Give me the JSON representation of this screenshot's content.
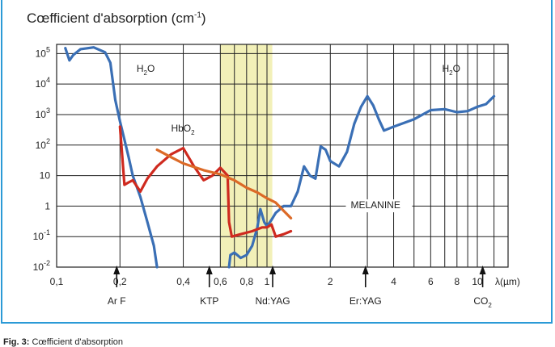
{
  "chart_data": {
    "type": "line",
    "title": "Cœfficient d'absorption (cm",
    "title_sup": "-1",
    "x_scale": "log",
    "y_scale": "log",
    "xlabel": "λ(µm)",
    "xlim": [
      0.1,
      14
    ],
    "ylim": [
      0.01,
      200000
    ],
    "x_ticks": [
      {
        "v": 0.1,
        "label": "0,1"
      },
      {
        "v": 0.2,
        "label": "0,2"
      },
      {
        "v": 0.4,
        "label": "0,4"
      },
      {
        "v": 0.6,
        "label": "0,6"
      },
      {
        "v": 0.8,
        "label": "0,8"
      },
      {
        "v": 1,
        "label": "1"
      },
      {
        "v": 2,
        "label": "2"
      },
      {
        "v": 4,
        "label": "4"
      },
      {
        "v": 6,
        "label": "6"
      },
      {
        "v": 8,
        "label": "8"
      },
      {
        "v": 10,
        "label": "10"
      }
    ],
    "x_grid": [
      0.1,
      0.2,
      0.4,
      0.6,
      0.7,
      0.8,
      0.9,
      1,
      2,
      3,
      4,
      5,
      6,
      7,
      8,
      9,
      10,
      12
    ],
    "y_ticks": [
      {
        "v": 100000,
        "base": "10",
        "exp": "5"
      },
      {
        "v": 10000,
        "base": "10",
        "exp": "4"
      },
      {
        "v": 1000,
        "base": "10",
        "exp": "3"
      },
      {
        "v": 100,
        "base": "10",
        "exp": "2"
      },
      {
        "v": 10,
        "base": "10",
        "exp": ""
      },
      {
        "v": 1,
        "base": "1",
        "exp": ""
      },
      {
        "v": 0.1,
        "base": "10",
        "exp": "-1"
      },
      {
        "v": 0.01,
        "base": "10",
        "exp": "-2"
      }
    ],
    "highlight_band": {
      "from": 0.6,
      "to": 1.06,
      "color": "#f2f0b8"
    },
    "series": [
      {
        "color": "#3a6fb5",
        "points": [
          [
            0.11,
            150000
          ],
          [
            0.115,
            60000
          ],
          [
            0.12,
            90000
          ],
          [
            0.13,
            140000
          ],
          [
            0.15,
            160000
          ],
          [
            0.17,
            110000
          ],
          [
            0.18,
            50000
          ],
          [
            0.19,
            3000
          ],
          [
            0.2,
            600
          ],
          [
            0.21,
            150
          ],
          [
            0.22,
            40
          ],
          [
            0.23,
            10
          ],
          [
            0.25,
            2
          ],
          [
            0.27,
            0.3
          ],
          [
            0.29,
            0.05
          ],
          [
            0.3,
            0.01
          ]
        ]
      },
      {
        "color": "#3a6fb5",
        "points": [
          [
            0.66,
            0.01
          ],
          [
            0.67,
            0.025
          ],
          [
            0.7,
            0.03
          ],
          [
            0.75,
            0.02
          ],
          [
            0.8,
            0.025
          ],
          [
            0.85,
            0.05
          ],
          [
            0.9,
            0.2
          ],
          [
            0.93,
            0.8
          ],
          [
            0.97,
            0.3
          ],
          [
            1.0,
            0.22
          ],
          [
            1.05,
            0.35
          ],
          [
            1.1,
            0.6
          ],
          [
            1.2,
            1
          ],
          [
            1.3,
            1
          ],
          [
            1.4,
            3
          ],
          [
            1.5,
            20
          ],
          [
            1.6,
            10
          ],
          [
            1.7,
            8
          ],
          [
            1.8,
            90
          ],
          [
            1.9,
            70
          ],
          [
            2.0,
            30
          ],
          [
            2.2,
            20
          ],
          [
            2.4,
            60
          ],
          [
            2.6,
            500
          ],
          [
            2.8,
            1800
          ],
          [
            3.0,
            4000
          ],
          [
            3.2,
            2000
          ],
          [
            3.4,
            700
          ],
          [
            3.6,
            300
          ],
          [
            4.0,
            400
          ],
          [
            5.0,
            700
          ],
          [
            6.0,
            1400
          ],
          [
            7.0,
            1500
          ],
          [
            8.0,
            1200
          ],
          [
            9.0,
            1300
          ],
          [
            10.0,
            1800
          ],
          [
            11.0,
            2200
          ],
          [
            12.0,
            4000
          ]
        ]
      },
      {
        "color": "#cf2a1f",
        "points": [
          [
            0.2,
            400
          ],
          [
            0.21,
            5
          ],
          [
            0.22,
            6
          ],
          [
            0.23,
            7
          ],
          [
            0.25,
            3
          ],
          [
            0.27,
            8
          ],
          [
            0.3,
            20
          ],
          [
            0.35,
            50
          ],
          [
            0.4,
            80
          ],
          [
            0.45,
            20
          ],
          [
            0.5,
            7
          ],
          [
            0.55,
            10
          ],
          [
            0.6,
            18
          ],
          [
            0.65,
            10
          ],
          [
            0.66,
            0.3
          ],
          [
            0.68,
            0.1
          ],
          [
            0.75,
            0.12
          ],
          [
            0.85,
            0.15
          ],
          [
            0.95,
            0.2
          ],
          [
            1.0,
            0.2
          ],
          [
            1.05,
            0.25
          ],
          [
            1.1,
            0.1
          ],
          [
            1.2,
            0.12
          ],
          [
            1.3,
            0.15
          ]
        ]
      },
      {
        "color": "#dc6a27",
        "points": [
          [
            0.3,
            70
          ],
          [
            0.35,
            40
          ],
          [
            0.4,
            25
          ],
          [
            0.5,
            15
          ],
          [
            0.6,
            11
          ],
          [
            0.7,
            7
          ],
          [
            0.8,
            4
          ],
          [
            0.9,
            2.8
          ],
          [
            1.0,
            1.8
          ],
          [
            1.1,
            1.3
          ],
          [
            1.2,
            0.7
          ],
          [
            1.3,
            0.4
          ]
        ]
      }
    ],
    "annotations": [
      {
        "text": "H",
        "sub": "2",
        "tail": "O",
        "x": 0.24,
        "y": 25000
      },
      {
        "text": "H",
        "sub": "2",
        "tail": "O",
        "x": 6.8,
        "y": 25000
      },
      {
        "text": "HbO",
        "sub": "2",
        "tail": "",
        "x": 0.35,
        "y": 280
      },
      {
        "text": "MELANINE",
        "sub": "",
        "tail": "",
        "x": 2.5,
        "y": 0.85
      }
    ],
    "lasers": [
      {
        "x": 0.193,
        "label": "Ar F",
        "sub": ""
      },
      {
        "x": 0.532,
        "label": "KTP",
        "sub": ""
      },
      {
        "x": 1.064,
        "label": "Nd:YAG",
        "sub": ""
      },
      {
        "x": 2.94,
        "label": "Er:YAG",
        "sub": ""
      },
      {
        "x": 10.6,
        "label": "CO",
        "sub": "2"
      }
    ]
  },
  "caption": {
    "bold": "Fig. 3:",
    "text": " Cœfficient d'absorption"
  }
}
